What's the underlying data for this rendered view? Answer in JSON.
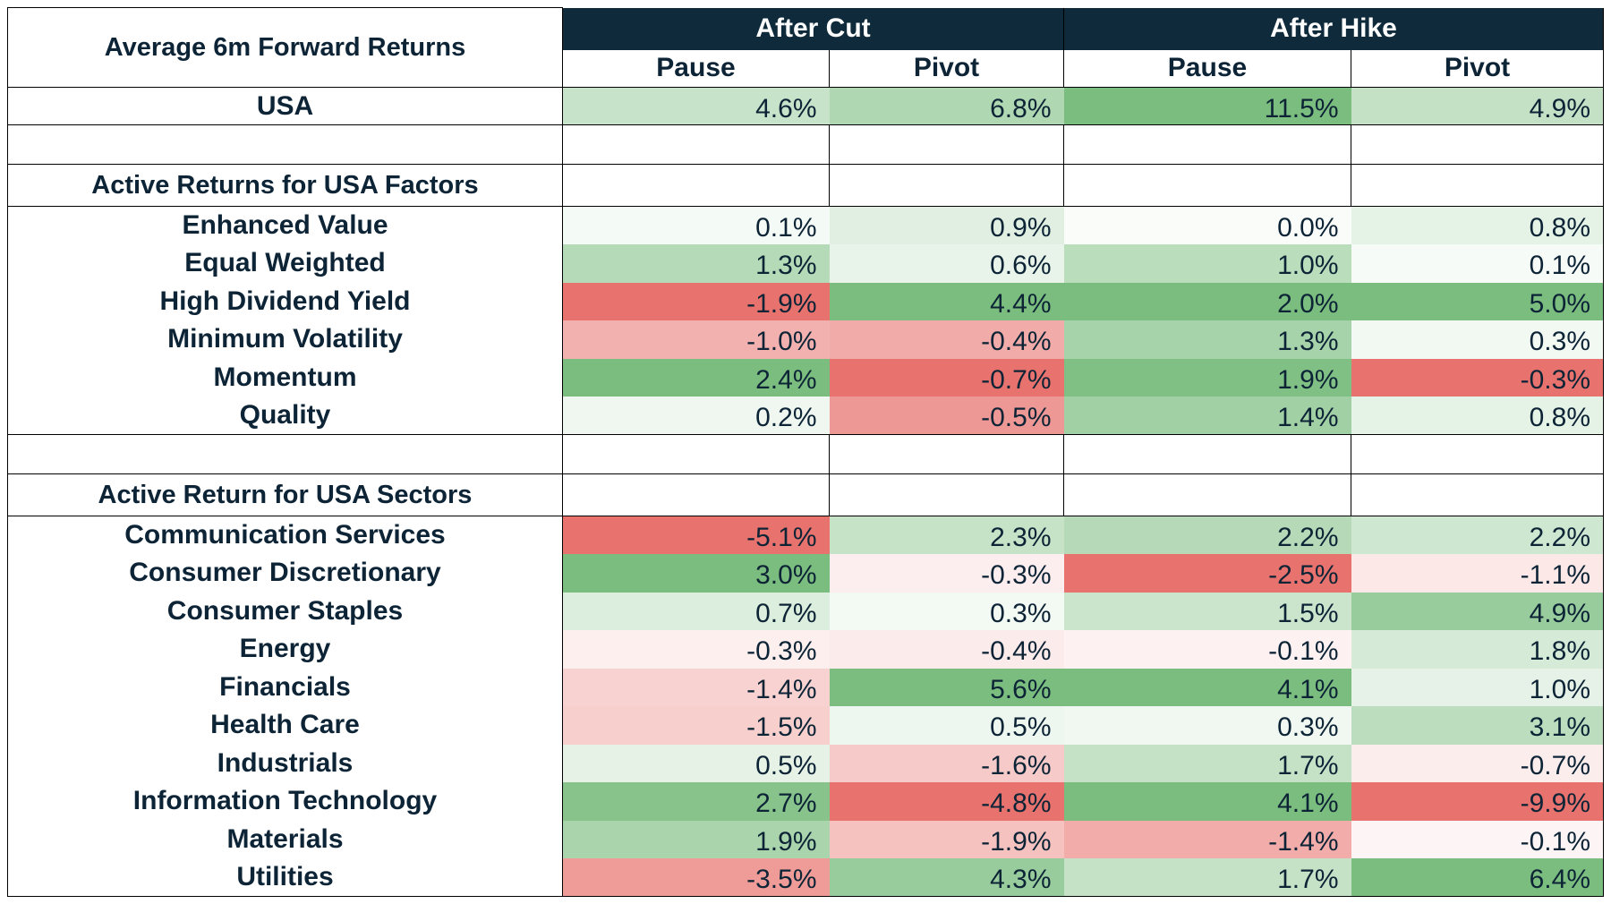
{
  "chart_data": {
    "type": "table",
    "title": "Average 6m Forward Returns",
    "column_groups": [
      "After Cut",
      "After Hike"
    ],
    "columns": [
      "Pause",
      "Pivot",
      "Pause",
      "Pivot"
    ],
    "usa": {
      "label": "USA",
      "values": [
        4.6,
        6.8,
        11.5,
        4.9
      ]
    },
    "sections": [
      {
        "title": "Active Returns for USA Factors",
        "rows": [
          {
            "label": "Enhanced Value",
            "values": [
              0.1,
              0.9,
              0.0,
              0.8
            ]
          },
          {
            "label": "Equal Weighted",
            "values": [
              1.3,
              0.6,
              1.0,
              0.1
            ]
          },
          {
            "label": "High Dividend Yield",
            "values": [
              -1.9,
              4.4,
              2.0,
              5.0
            ]
          },
          {
            "label": "Minimum Volatility",
            "values": [
              -1.0,
              -0.4,
              1.3,
              0.3
            ]
          },
          {
            "label": "Momentum",
            "values": [
              2.4,
              -0.7,
              1.9,
              -0.3
            ]
          },
          {
            "label": "Quality",
            "values": [
              0.2,
              -0.5,
              1.4,
              0.8
            ]
          }
        ]
      },
      {
        "title": "Active Return for USA Sectors",
        "rows": [
          {
            "label": "Communication Services",
            "values": [
              -5.1,
              2.3,
              2.2,
              2.2
            ]
          },
          {
            "label": "Consumer Discretionary",
            "values": [
              3.0,
              -0.3,
              -2.5,
              -1.1
            ]
          },
          {
            "label": "Consumer Staples",
            "values": [
              0.7,
              0.3,
              1.5,
              4.9
            ]
          },
          {
            "label": "Energy",
            "values": [
              -0.3,
              -0.4,
              -0.1,
              1.8
            ]
          },
          {
            "label": "Financials",
            "values": [
              -1.4,
              5.6,
              4.1,
              1.0
            ]
          },
          {
            "label": "Health Care",
            "values": [
              -1.5,
              0.5,
              0.3,
              3.1
            ]
          },
          {
            "label": "Industrials",
            "values": [
              0.5,
              -1.6,
              1.7,
              -0.7
            ]
          },
          {
            "label": "Information Technology",
            "values": [
              2.7,
              -4.8,
              4.1,
              -9.9
            ]
          },
          {
            "label": "Materials",
            "values": [
              1.9,
              -1.9,
              -1.4,
              -0.1
            ]
          },
          {
            "label": "Utilities",
            "values": [
              -3.5,
              4.3,
              1.7,
              6.4
            ]
          }
        ]
      }
    ],
    "unit": "%",
    "colors": {
      "positive": "#7bbd7f",
      "negative": "#e8726e",
      "neutral": "#ffffff",
      "header_bg": "#0e2a3b",
      "text": "#0d2436"
    }
  }
}
